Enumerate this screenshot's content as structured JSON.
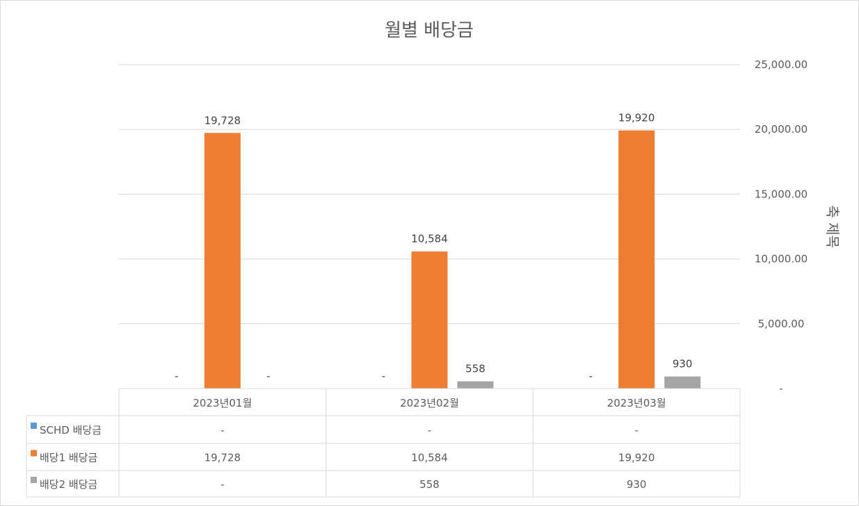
{
  "chart_data": {
    "type": "bar",
    "title": "월별 배당금",
    "ylabel": "축 제목",
    "ylim": [
      0,
      25000
    ],
    "yticks": [
      "-",
      "5,000.00",
      "10,000.00",
      "15,000.00",
      "20,000.00",
      "25,000.00"
    ],
    "categories": [
      "2023년01월",
      "2023년02월",
      "2023년03월"
    ],
    "series": [
      {
        "name": "SCHD 배당금",
        "color": "#5b9bd5",
        "values": [
          0,
          0,
          0
        ],
        "labels": [
          "-",
          "-",
          "-"
        ]
      },
      {
        "name": "배당1 배당금",
        "color": "#ed7d31",
        "values": [
          19728,
          10584,
          19920
        ],
        "labels": [
          "19,728",
          "10,584",
          "19,920"
        ]
      },
      {
        "name": "배당2 배당금",
        "color": "#a5a5a5",
        "values": [
          0,
          558,
          930
        ],
        "labels": [
          "-",
          "558",
          "930"
        ]
      }
    ],
    "grid": true,
    "legend": "data-table"
  }
}
